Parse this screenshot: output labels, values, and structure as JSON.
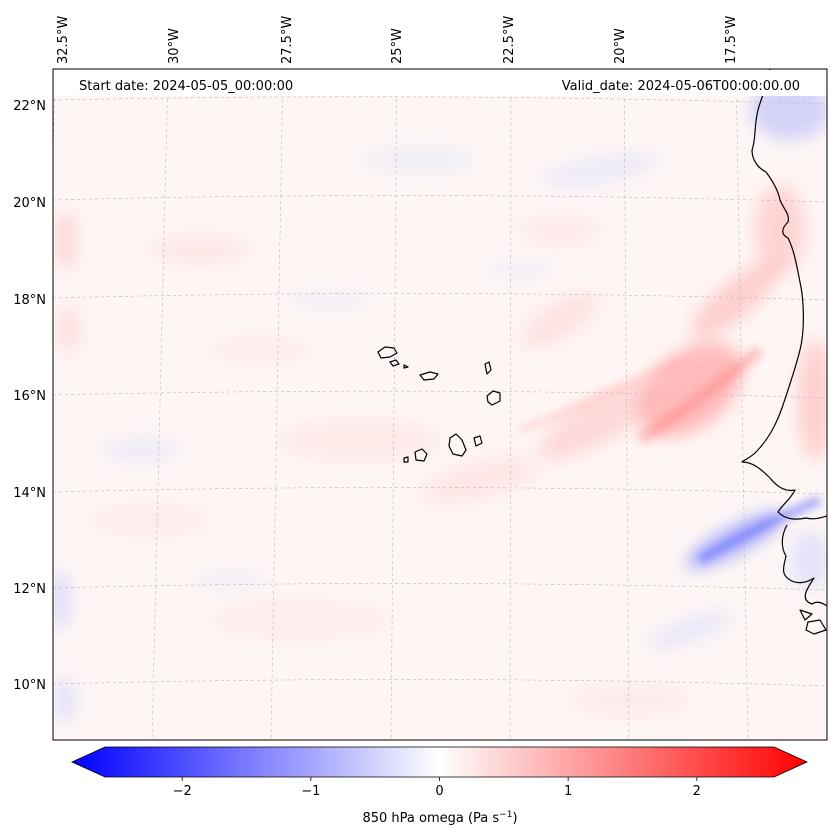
{
  "map": {
    "start_label": "Start date: 2024-05-05_00:00:00",
    "valid_label": "Valid_date: 2024-05-06T00:00:00.00",
    "lon_labels": [
      "32.5°W",
      "30°W",
      "27.5°W",
      "25°W",
      "22.5°W",
      "20°W",
      "17.5°W"
    ],
    "lat_labels": [
      "22°N",
      "20°N",
      "18°N",
      "16°N",
      "14°N",
      "12°N",
      "10°N"
    ]
  },
  "colorbar": {
    "label_main": "850 hPa omega (Pa s",
    "label_sup": "−1",
    "label_close": ")",
    "ticks": [
      "−2",
      "−1",
      "0",
      "1",
      "2"
    ],
    "tick_values": [
      -2,
      -1,
      0,
      1,
      2
    ],
    "range": [
      -2.6,
      2.6
    ],
    "colors": {
      "low": "#0000ff",
      "mid": "#ffffff",
      "high": "#ff0000"
    }
  }
}
